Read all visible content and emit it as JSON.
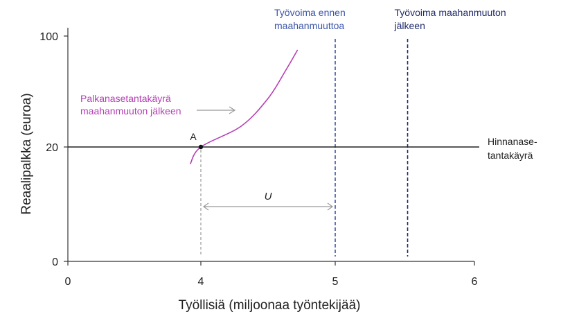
{
  "chart_data": {
    "type": "line",
    "xlabel": "Työllisiä (miljoonaa työntekijää)",
    "ylabel": "Reaalipalkka (euroa)",
    "x_ticks": [
      {
        "value": 0,
        "label": "0"
      },
      {
        "value": 4,
        "label": "4"
      },
      {
        "value": 5,
        "label": "5"
      },
      {
        "value": 6,
        "label": "6"
      }
    ],
    "y_ticks": [
      {
        "value": 0,
        "label": "0"
      },
      {
        "value": 20,
        "label": "20"
      },
      {
        "value": 100,
        "label": "100"
      }
    ],
    "x_scale_note": "broken axis: ticks 0,4,5,6",
    "y_scale_note": "broken axis: ticks 0,20,100",
    "colors": {
      "axis": "#333333",
      "price_setting": "#222222",
      "wage_setting": "#b43fb4",
      "labour_before": "#3a55a8",
      "labour_after": "#1f2a6b",
      "unemployment": "#999999"
    },
    "series": [
      {
        "name": "Palkanasetantakäyrä maahanmuuton jälkeen",
        "points": [
          [
            3.68,
            17
          ],
          [
            4.0,
            20
          ],
          [
            4.3,
            35
          ],
          [
            4.5,
            55
          ],
          [
            4.63,
            75
          ],
          [
            4.72,
            90
          ]
        ]
      },
      {
        "name": "Hinnanasetantakäyrä",
        "points": [
          [
            0,
            20
          ],
          [
            6.05,
            20
          ]
        ]
      }
    ],
    "vlines": [
      {
        "name": "Työvoima ennen maahanmuuttoa",
        "x": 5,
        "label_lines": [
          "Työvoima ennen",
          "maahanmuuttoa"
        ]
      },
      {
        "name": "Työvoima maahanmuuton jälkeen",
        "x": 5.52,
        "label_lines": [
          "Työvoima maahanmuuton",
          "jälkeen"
        ]
      }
    ],
    "annotations": {
      "point_a": {
        "label": "A",
        "x": 4,
        "y": 20
      },
      "unemployment": {
        "label": "U",
        "x_from": 4,
        "x_to": 5
      },
      "wage_curve_label": [
        "Palkanasetantakäyrä",
        "maahanmuuton jälkeen"
      ],
      "price_curve_label": [
        "Hinnanase-",
        "tantakäyrä"
      ]
    }
  }
}
